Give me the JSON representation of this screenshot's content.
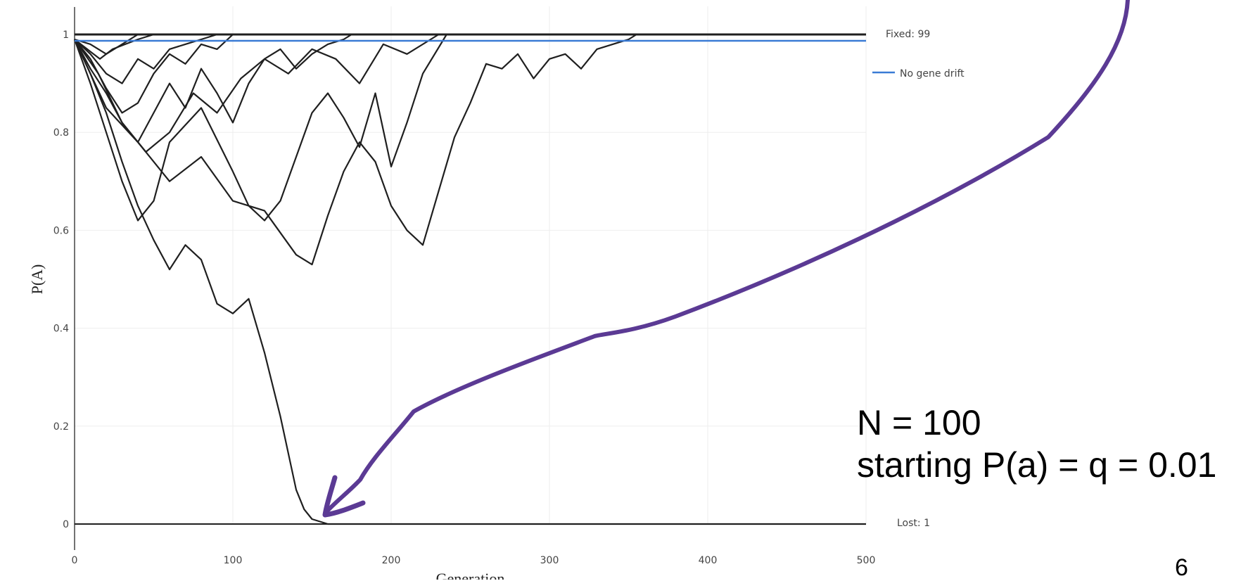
{
  "chart_data": {
    "type": "line",
    "xlabel": "Generation",
    "ylabel": "P(A)",
    "xlim": [
      0,
      500
    ],
    "ylim": [
      0,
      1
    ],
    "x_ticks": [
      "0",
      "100",
      "200",
      "300",
      "400",
      "500"
    ],
    "y_ticks": [
      "0",
      "0.2",
      "0.4",
      "0.6",
      "0.8",
      "1"
    ],
    "grid": true,
    "legend_position": "right",
    "legend": [
      {
        "label": "Fixed: 99",
        "color": "#1f1f1f"
      },
      {
        "label": "No gene drift",
        "color": "#3a7bd5"
      },
      {
        "label": "Lost: 1",
        "color": "#1f1f1f"
      }
    ],
    "reference_lines": [
      {
        "name": "No gene drift",
        "y": 0.99,
        "color": "#3a7bd5"
      }
    ],
    "series": [
      {
        "x": [
          0,
          10,
          20,
          30,
          40,
          50,
          60,
          70,
          80,
          90,
          100,
          110,
          120,
          130,
          140,
          145,
          150,
          155,
          160,
          500
        ],
        "y": [
          0.99,
          0.92,
          0.84,
          0.74,
          0.65,
          0.58,
          0.52,
          0.57,
          0.54,
          0.45,
          0.43,
          0.46,
          0.35,
          0.22,
          0.07,
          0.03,
          0.01,
          0.005,
          0,
          0
        ]
      },
      {
        "x": [
          0,
          20,
          40,
          60,
          80,
          100,
          120,
          140,
          150,
          160,
          170,
          180,
          190,
          200,
          210,
          220,
          230,
          240,
          250,
          260,
          270,
          280,
          290,
          300,
          310,
          320,
          330,
          340,
          350,
          355,
          500
        ],
        "y": [
          0.99,
          0.85,
          0.78,
          0.7,
          0.75,
          0.66,
          0.64,
          0.55,
          0.53,
          0.63,
          0.72,
          0.78,
          0.74,
          0.65,
          0.6,
          0.57,
          0.68,
          0.79,
          0.86,
          0.94,
          0.93,
          0.96,
          0.91,
          0.95,
          0.96,
          0.93,
          0.97,
          0.98,
          0.99,
          1,
          1
        ]
      },
      {
        "x": [
          0,
          10,
          20,
          30,
          40,
          50,
          60,
          80,
          100,
          110,
          120,
          130,
          140,
          150,
          160,
          170,
          180,
          190,
          200,
          210,
          220,
          235,
          500
        ],
        "y": [
          0.99,
          0.9,
          0.8,
          0.7,
          0.62,
          0.66,
          0.78,
          0.85,
          0.72,
          0.65,
          0.62,
          0.66,
          0.75,
          0.84,
          0.88,
          0.83,
          0.77,
          0.88,
          0.73,
          0.82,
          0.92,
          1,
          1
        ]
      },
      {
        "x": [
          0,
          15,
          30,
          45,
          60,
          75,
          90,
          105,
          120,
          135,
          150,
          165,
          180,
          195,
          210,
          230,
          500
        ],
        "y": [
          0.99,
          0.92,
          0.82,
          0.76,
          0.8,
          0.88,
          0.84,
          0.91,
          0.95,
          0.92,
          0.97,
          0.95,
          0.9,
          0.98,
          0.96,
          1,
          1
        ]
      },
      {
        "x": [
          0,
          10,
          20,
          30,
          40,
          50,
          60,
          70,
          80,
          90,
          100,
          110,
          120,
          130,
          140,
          150,
          160,
          170,
          175,
          500
        ],
        "y": [
          0.99,
          0.93,
          0.88,
          0.82,
          0.78,
          0.84,
          0.9,
          0.85,
          0.93,
          0.88,
          0.82,
          0.9,
          0.95,
          0.97,
          0.93,
          0.96,
          0.98,
          0.99,
          1,
          1
        ]
      },
      {
        "x": [
          0,
          10,
          20,
          30,
          40,
          50,
          60,
          70,
          80,
          90,
          100,
          500
        ],
        "y": [
          0.99,
          0.95,
          0.89,
          0.84,
          0.86,
          0.92,
          0.96,
          0.94,
          0.98,
          0.97,
          1,
          1
        ]
      },
      {
        "x": [
          0,
          10,
          20,
          30,
          40,
          50,
          60,
          70,
          80,
          90,
          500
        ],
        "y": [
          0.99,
          0.96,
          0.92,
          0.9,
          0.95,
          0.93,
          0.97,
          0.98,
          0.99,
          1,
          1
        ]
      },
      {
        "x": [
          0,
          8,
          16,
          24,
          32,
          40,
          50,
          500
        ],
        "y": [
          0.99,
          0.97,
          0.95,
          0.97,
          0.98,
          0.99,
          1,
          1
        ]
      },
      {
        "x": [
          0,
          10,
          20,
          30,
          40,
          500
        ],
        "y": [
          0.99,
          0.98,
          0.96,
          0.98,
          1,
          1
        ]
      }
    ]
  },
  "annotation": {
    "line1": "N = 100",
    "line2": "starting P(a) = q = 0.01",
    "arrow_color": "#5b3a94"
  },
  "slide_number": "6"
}
